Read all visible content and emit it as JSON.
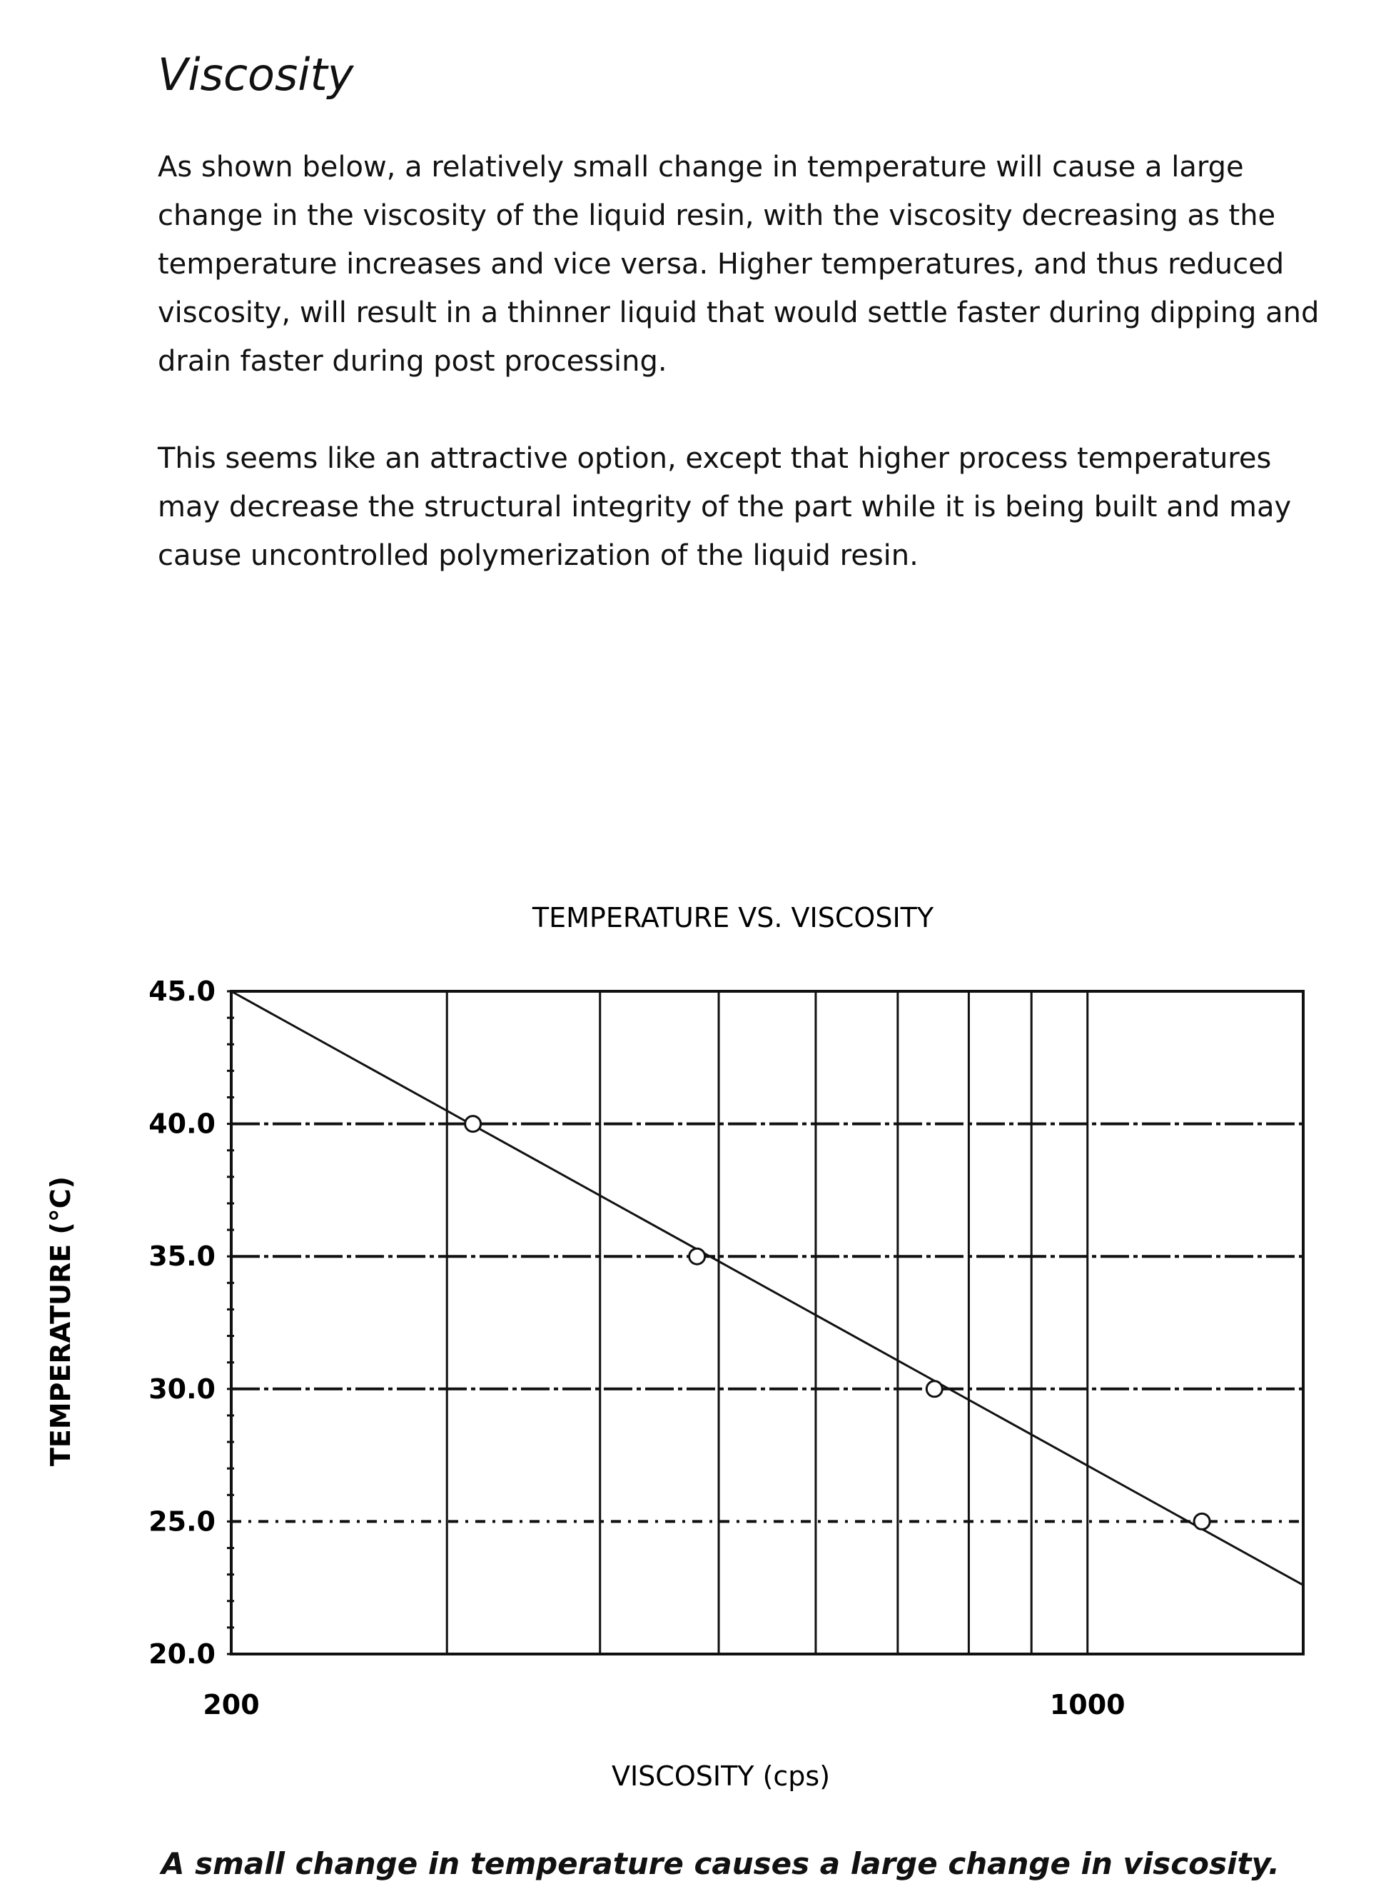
{
  "heading": "Viscosity",
  "paragraphs": [
    "As shown below, a relatively small change in temperature will cause a large change in the viscosity of the liquid resin, with the viscosity decreasing as the temperature increases and vice versa.  Higher temperatures, and thus reduced viscosity, will result in a thinner liquid that would settle faster during dipping and drain faster during post processing.",
    "This seems like an attractive option, except that higher process temperatures may decrease the structural integrity of the part while it is being built and may cause uncontrolled polymerization of the liquid resin."
  ],
  "caption": "A small change in temperature causes a large change in viscosity.",
  "chart_data": {
    "type": "line",
    "title": "TEMPERATURE VS. VISCOSITY",
    "xlabel": "VISCOSITY (cps)",
    "ylabel": "TEMPERATURE (°C)",
    "x_scale": "log",
    "xlim": [
      200,
      1500
    ],
    "ylim": [
      20,
      45
    ],
    "x_tick_labels": [
      "200",
      "1000"
    ],
    "x_gridlines": [
      300,
      400,
      500,
      600,
      700,
      800,
      900,
      1000
    ],
    "y_tick_labels": [
      "20.0",
      "25.0",
      "30.0",
      "35.0",
      "40.0",
      "45.0"
    ],
    "y_gridlines": [
      25,
      30,
      35,
      40
    ],
    "grid": true,
    "line_color": "#111111",
    "series": [
      {
        "marker": "open-circle",
        "points": [
          [
            315,
            40
          ],
          [
            480,
            35
          ],
          [
            750,
            30
          ],
          [
            1240,
            25
          ]
        ]
      }
    ],
    "trend_line": [
      [
        200,
        45
      ],
      [
        1500,
        22.6
      ]
    ]
  }
}
